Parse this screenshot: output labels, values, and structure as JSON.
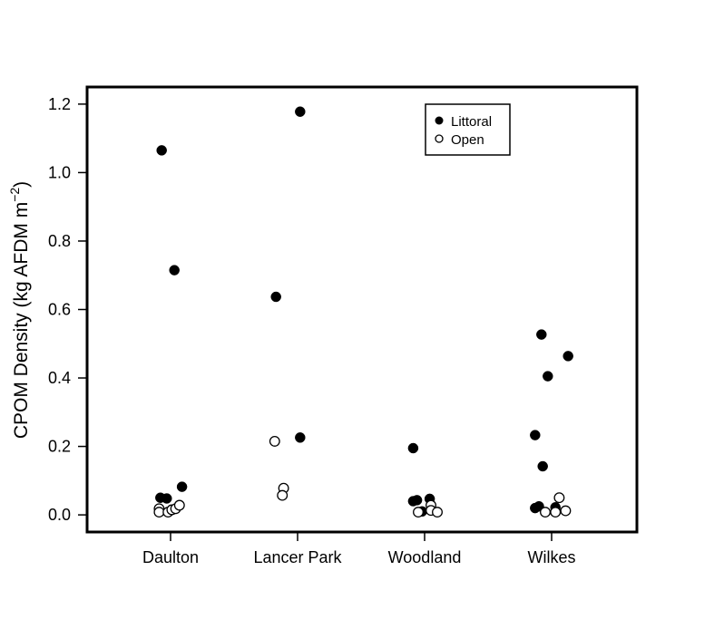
{
  "chart_data": {
    "type": "scatter",
    "title": "",
    "xlabel": "",
    "ylabel": {
      "main": "CPOM Density (kg AFDM m",
      "superscript": "−2",
      "close": ")"
    },
    "ylim": [
      -0.05,
      1.25
    ],
    "yticks": [
      "0.0",
      "0.2",
      "0.4",
      "0.6",
      "0.8",
      "1.0",
      "1.2"
    ],
    "ytick_values": [
      0.0,
      0.2,
      0.4,
      0.6,
      0.8,
      1.0,
      1.2
    ],
    "categories": [
      "Daulton",
      "Lancer Park",
      "Woodland",
      "Wilkes"
    ],
    "grid": false,
    "legend": {
      "placement": "top-right",
      "entries": [
        "Littoral",
        "Open"
      ]
    },
    "series": [
      {
        "name": "Littoral",
        "marker": "filled-circle",
        "color": "#000000",
        "points": [
          {
            "category": "Daulton",
            "jitter": -0.07,
            "y": 1.065
          },
          {
            "category": "Daulton",
            "jitter": 0.03,
            "y": 0.715
          },
          {
            "category": "Daulton",
            "jitter": 0.09,
            "y": 0.082
          },
          {
            "category": "Daulton",
            "jitter": -0.08,
            "y": 0.05
          },
          {
            "category": "Daulton",
            "jitter": -0.03,
            "y": 0.048
          },
          {
            "category": "Lancer Park",
            "jitter": -0.17,
            "y": 0.637
          },
          {
            "category": "Lancer Park",
            "jitter": 0.02,
            "y": 1.178
          },
          {
            "category": "Lancer Park",
            "jitter": 0.02,
            "y": 0.226
          },
          {
            "category": "Woodland",
            "jitter": -0.09,
            "y": 0.195
          },
          {
            "category": "Woodland",
            "jitter": -0.09,
            "y": 0.04
          },
          {
            "category": "Woodland",
            "jitter": -0.06,
            "y": 0.043
          },
          {
            "category": "Woodland",
            "jitter": 0.04,
            "y": 0.047
          },
          {
            "category": "Woodland",
            "jitter": -0.02,
            "y": 0.01
          },
          {
            "category": "Wilkes",
            "jitter": -0.08,
            "y": 0.527
          },
          {
            "category": "Wilkes",
            "jitter": 0.13,
            "y": 0.464
          },
          {
            "category": "Wilkes",
            "jitter": -0.03,
            "y": 0.405
          },
          {
            "category": "Wilkes",
            "jitter": -0.13,
            "y": 0.233
          },
          {
            "category": "Wilkes",
            "jitter": -0.07,
            "y": 0.142
          },
          {
            "category": "Wilkes",
            "jitter": -0.13,
            "y": 0.02
          },
          {
            "category": "Wilkes",
            "jitter": -0.1,
            "y": 0.025
          },
          {
            "category": "Wilkes",
            "jitter": 0.03,
            "y": 0.022
          }
        ]
      },
      {
        "name": "Open",
        "marker": "open-circle",
        "color": "#000000",
        "points": [
          {
            "category": "Daulton",
            "jitter": -0.09,
            "y": 0.018
          },
          {
            "category": "Daulton",
            "jitter": -0.09,
            "y": 0.008
          },
          {
            "category": "Daulton",
            "jitter": -0.02,
            "y": 0.008
          },
          {
            "category": "Daulton",
            "jitter": 0.01,
            "y": 0.015
          },
          {
            "category": "Daulton",
            "jitter": 0.04,
            "y": 0.018
          },
          {
            "category": "Daulton",
            "jitter": 0.07,
            "y": 0.028
          },
          {
            "category": "Lancer Park",
            "jitter": -0.18,
            "y": 0.215
          },
          {
            "category": "Lancer Park",
            "jitter": -0.11,
            "y": 0.078
          },
          {
            "category": "Lancer Park",
            "jitter": -0.12,
            "y": 0.057
          },
          {
            "category": "Woodland",
            "jitter": -0.05,
            "y": 0.008
          },
          {
            "category": "Woodland",
            "jitter": 0.05,
            "y": 0.028
          },
          {
            "category": "Woodland",
            "jitter": 0.05,
            "y": 0.013
          },
          {
            "category": "Woodland",
            "jitter": 0.1,
            "y": 0.008
          },
          {
            "category": "Wilkes",
            "jitter": -0.05,
            "y": 0.008
          },
          {
            "category": "Wilkes",
            "jitter": 0.03,
            "y": 0.008
          },
          {
            "category": "Wilkes",
            "jitter": 0.06,
            "y": 0.05
          },
          {
            "category": "Wilkes",
            "jitter": 0.11,
            "y": 0.012
          }
        ]
      }
    ]
  }
}
